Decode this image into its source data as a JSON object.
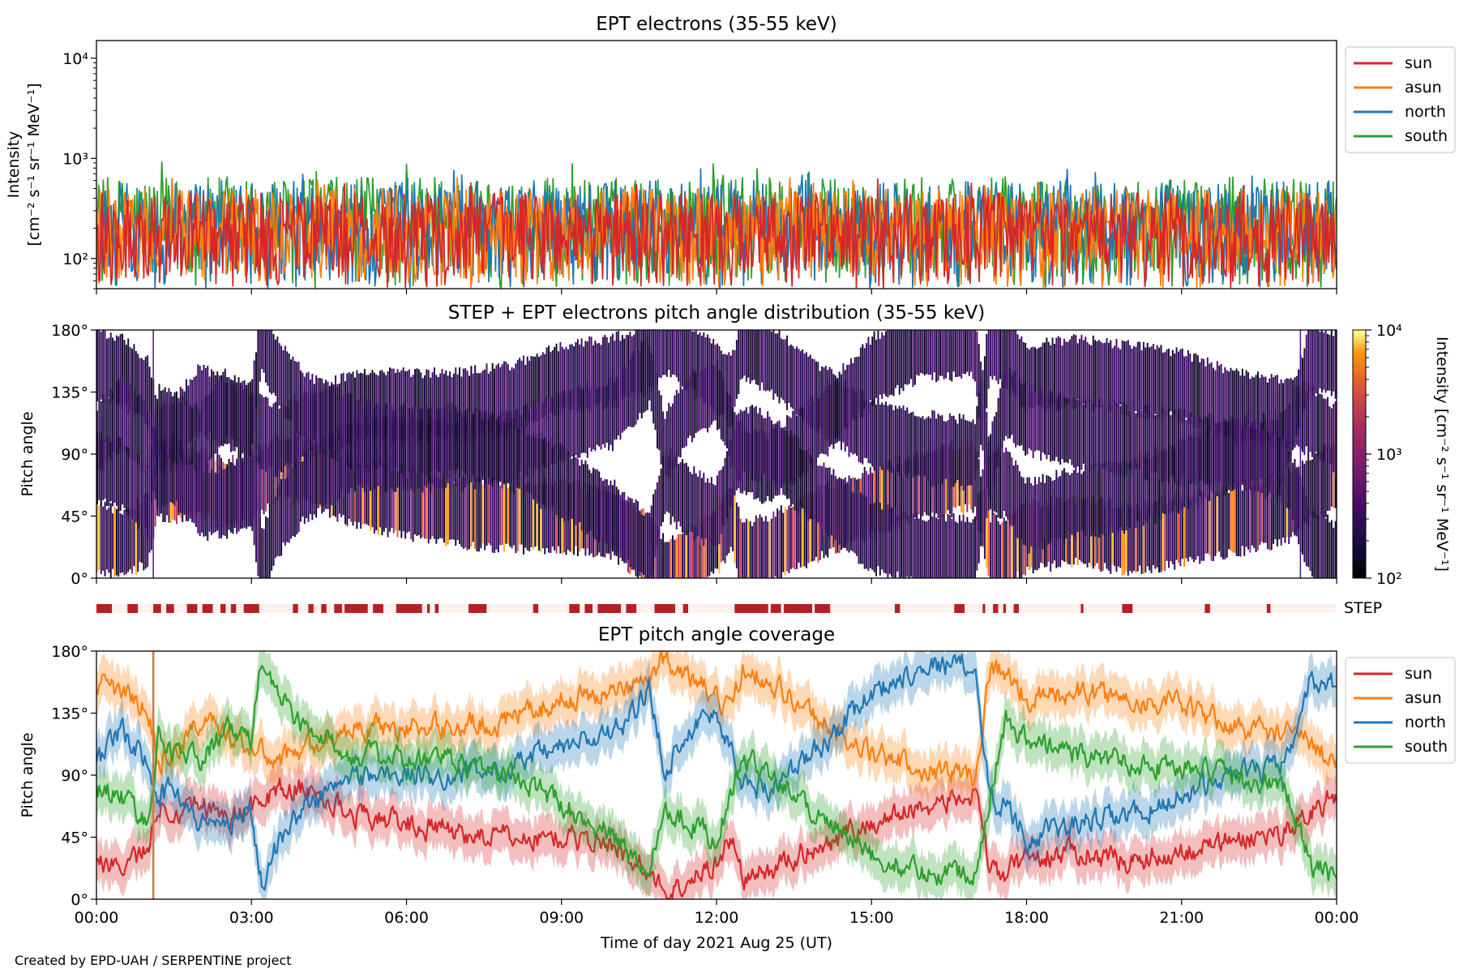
{
  "figure": {
    "credit": "Created by EPD-UAH / SERPENTINE project",
    "colors": {
      "sun": "#d62728",
      "asun": "#ff7f0e",
      "north": "#1f77b4",
      "south": "#2ca02c",
      "step_bar": "#b22222",
      "step_bg": "#fdf0ee"
    }
  },
  "chart_data": [
    {
      "type": "line",
      "title": "EPT electrons (35-55 keV)",
      "ylabel_line1": "Intensity",
      "ylabel_line2": "[cm⁻² s⁻¹ sr⁻¹ MeV⁻¹]",
      "yscale": "log",
      "ylim": [
        50,
        15000
      ],
      "yticks": [
        {
          "value": 100,
          "label": "10²"
        },
        {
          "value": 1000,
          "label": "10³"
        },
        {
          "value": 10000,
          "label": "10⁴"
        }
      ],
      "xlim_hours": [
        0,
        24
      ],
      "legend_position": "outside-right",
      "series": [
        {
          "name": "sun",
          "color": "#d62728",
          "typical_range": [
            50,
            450
          ]
        },
        {
          "name": "asun",
          "color": "#ff7f0e",
          "typical_range": [
            50,
            500
          ]
        },
        {
          "name": "north",
          "color": "#1f77b4",
          "typical_range": [
            50,
            600
          ]
        },
        {
          "name": "south",
          "color": "#2ca02c",
          "typical_range": [
            50,
            650
          ]
        }
      ]
    },
    {
      "type": "heatmap",
      "title": "STEP + EPT electrons pitch angle distribution (35-55 keV)",
      "ylabel": "Pitch angle",
      "ylim": [
        0,
        180
      ],
      "yticks": [
        "0°",
        "45°",
        "90°",
        "135°",
        "180°"
      ],
      "colorbar": {
        "label": "Intensity [cm⁻² s⁻¹ sr⁻¹ MeV⁻¹]",
        "scale": "log",
        "range": [
          100,
          10000
        ],
        "ticks": [
          "10²",
          "10³",
          "10⁴"
        ],
        "colormap": "inferno"
      }
    },
    {
      "type": "bar",
      "label": "STEP",
      "description": "data availability flags",
      "segments_hours": [
        [
          0.0,
          0.3
        ],
        [
          0.6,
          0.8
        ],
        [
          1.1,
          1.25
        ],
        [
          1.35,
          1.5
        ],
        [
          1.75,
          1.95
        ],
        [
          2.05,
          2.25
        ],
        [
          2.4,
          2.5
        ],
        [
          2.6,
          2.7
        ],
        [
          2.85,
          3.15
        ],
        [
          3.8,
          3.9
        ],
        [
          4.1,
          4.2
        ],
        [
          4.35,
          4.45
        ],
        [
          4.6,
          4.75
        ],
        [
          4.8,
          5.25
        ],
        [
          5.35,
          5.55
        ],
        [
          5.8,
          6.3
        ],
        [
          6.4,
          6.45
        ],
        [
          6.55,
          6.62
        ],
        [
          7.2,
          7.55
        ],
        [
          8.45,
          8.55
        ],
        [
          9.15,
          9.35
        ],
        [
          9.45,
          9.6
        ],
        [
          9.7,
          10.15
        ],
        [
          10.25,
          10.45
        ],
        [
          10.8,
          11.2
        ],
        [
          11.35,
          11.45
        ],
        [
          12.35,
          13.0
        ],
        [
          13.05,
          13.25
        ],
        [
          13.3,
          13.85
        ],
        [
          13.9,
          14.2
        ],
        [
          15.45,
          15.55
        ],
        [
          16.6,
          16.8
        ],
        [
          17.15,
          17.2
        ],
        [
          17.35,
          17.45
        ],
        [
          17.55,
          17.6
        ],
        [
          17.75,
          17.85
        ],
        [
          19.05,
          19.1
        ],
        [
          19.85,
          20.05
        ],
        [
          21.45,
          21.55
        ],
        [
          22.65,
          22.72
        ]
      ]
    },
    {
      "type": "line",
      "title": "EPT pitch angle coverage",
      "ylabel": "Pitch angle",
      "ylim": [
        0,
        180
      ],
      "yticks": [
        "0°",
        "45°",
        "90°",
        "135°",
        "180°"
      ],
      "xlabel": "Time of day 2021 Aug 25 (UT)",
      "xticks": [
        "00:00",
        "03:00",
        "06:00",
        "09:00",
        "12:00",
        "15:00",
        "18:00",
        "21:00",
        "00:00"
      ],
      "xlim_hours": [
        0,
        24
      ],
      "legend_position": "outside-right",
      "uncertainty_halfwidth_deg": 15,
      "series": [
        {
          "name": "sun",
          "color": "#d62728",
          "x": [
            0,
            0.5,
            1,
            1.2,
            1.5,
            2,
            2.5,
            3,
            3.5,
            4,
            5,
            6,
            7,
            8,
            9,
            10,
            10.7,
            11,
            11.5,
            12,
            12.3,
            12.5,
            13,
            14,
            15,
            16,
            17,
            17.3,
            17.6,
            18,
            19,
            20,
            21,
            22,
            23,
            23.5,
            24
          ],
          "y": [
            30,
            25,
            35,
            70,
            65,
            70,
            60,
            65,
            80,
            80,
            62,
            55,
            48,
            45,
            45,
            40,
            20,
            5,
            12,
            28,
            45,
            15,
            20,
            40,
            55,
            68,
            75,
            20,
            18,
            30,
            35,
            28,
            35,
            42,
            50,
            65,
            75
          ]
        },
        {
          "name": "asun",
          "color": "#ff7f0e",
          "x": [
            0,
            0.5,
            1,
            1.2,
            1.5,
            2,
            2.5,
            3,
            3.5,
            4,
            5,
            6,
            7,
            8,
            9,
            10,
            10.7,
            11,
            11.5,
            12,
            12.3,
            12.5,
            13,
            14,
            15,
            16,
            17,
            17.3,
            17.6,
            18,
            19,
            20,
            21,
            22,
            23,
            23.5,
            24
          ],
          "y": [
            155,
            150,
            135,
            100,
            105,
            130,
            120,
            110,
            100,
            110,
            125,
            125,
            125,
            130,
            145,
            150,
            160,
            175,
            160,
            145,
            135,
            170,
            160,
            130,
            105,
            95,
            90,
            168,
            165,
            145,
            150,
            145,
            140,
            125,
            120,
            115,
            100
          ]
        },
        {
          "name": "north",
          "color": "#1f77b4",
          "x": [
            0,
            0.5,
            1,
            1.2,
            1.5,
            2,
            2.5,
            3,
            3.2,
            3.5,
            4,
            5,
            6,
            7,
            8,
            9,
            10,
            10.7,
            11,
            11.5,
            12,
            12.5,
            13,
            14,
            15,
            16,
            17,
            17.3,
            17.6,
            18,
            19,
            20,
            21,
            22,
            23,
            23.5,
            24
          ],
          "y": [
            100,
            120,
            100,
            75,
            80,
            55,
            55,
            65,
            10,
            40,
            65,
            90,
            90,
            90,
            95,
            110,
            120,
            150,
            95,
            125,
            135,
            85,
            80,
            110,
            150,
            170,
            170,
            70,
            70,
            45,
            55,
            60,
            75,
            90,
            95,
            160,
            155
          ]
        },
        {
          "name": "south",
          "color": "#2ca02c",
          "x": [
            0,
            0.5,
            1,
            1.2,
            1.5,
            2,
            2.5,
            3,
            3.2,
            3.5,
            4,
            5,
            6,
            7,
            8,
            9,
            10,
            10.7,
            11,
            11.5,
            12,
            12.5,
            13,
            14,
            15,
            16,
            17,
            17.3,
            17.6,
            18,
            19,
            20,
            21,
            22,
            23,
            23.5,
            24
          ],
          "y": [
            80,
            75,
            55,
            115,
            110,
            100,
            125,
            115,
            175,
            150,
            125,
            105,
            100,
            100,
            90,
            70,
            45,
            20,
            70,
            55,
            45,
            100,
            95,
            60,
            30,
            20,
            20,
            80,
            130,
            115,
            105,
            100,
            95,
            90,
            80,
            25,
            15
          ]
        }
      ]
    }
  ]
}
